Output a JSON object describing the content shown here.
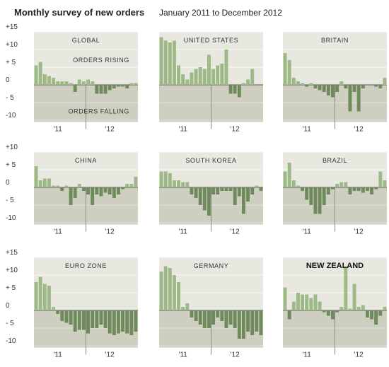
{
  "title": "Monthly survey of new orders",
  "subtitle": "January 2011 to December 2012",
  "chart_data": [
    {
      "type": "bar",
      "title": "GLOBAL",
      "annotations": [
        "ORDERS RISING",
        "ORDERS FALLING"
      ],
      "categories": [
        null,
        null,
        null,
        null,
        null,
        "'11",
        null,
        null,
        null,
        null,
        null,
        null,
        null,
        null,
        null,
        null,
        null,
        "'12",
        null,
        null,
        null,
        null,
        null,
        null
      ],
      "values": [
        5.5,
        6.5,
        3,
        2.5,
        2,
        1,
        1,
        1,
        0.5,
        -2,
        1.5,
        1,
        1.5,
        1,
        -2.5,
        -2.5,
        -2.5,
        -1.5,
        -1,
        -0.5,
        -0.5,
        -1,
        0.5,
        0.5
      ],
      "color": "#9cb987",
      "negative_color": "#6f8a5c",
      "ylim": [
        -10.5,
        15
      ],
      "yticks": [
        {
          "value": 15,
          "label": "+15"
        },
        {
          "value": 10,
          "label": "+10"
        },
        {
          "value": 5,
          "label": "+ 5"
        },
        0,
        {
          "value": -5,
          "label": "- 5"
        },
        -10
      ]
    },
    {
      "type": "bar",
      "title": "UNITED STATES",
      "categories": [
        null,
        null,
        null,
        null,
        null,
        "'11",
        null,
        null,
        null,
        null,
        null,
        null,
        null,
        null,
        null,
        null,
        null,
        "'12",
        null,
        null,
        null,
        null,
        null,
        null
      ],
      "values": [
        13.5,
        12.5,
        12,
        12.5,
        5.5,
        3,
        1.5,
        3.5,
        4.5,
        5,
        4.5,
        8.5,
        4.5,
        5.5,
        6,
        10,
        -2.5,
        -2.5,
        -3.5,
        0.5,
        1.5,
        4.5,
        0,
        0
      ],
      "color": "#9cb987",
      "negative_color": "#6f8a5c",
      "ylim": [
        -10.5,
        15
      ]
    },
    {
      "type": "bar",
      "title": "BRITAIN",
      "categories": [
        null,
        null,
        null,
        null,
        null,
        "'11",
        null,
        null,
        null,
        null,
        null,
        null,
        null,
        null,
        null,
        null,
        null,
        "'12",
        null,
        null,
        null,
        null,
        null,
        null
      ],
      "values": [
        9,
        7,
        2,
        1,
        0.5,
        -0.5,
        0.5,
        -1,
        -1.5,
        -2,
        -3,
        -3.5,
        -2,
        1,
        -1,
        -7.5,
        -2,
        -7.5,
        -1,
        0,
        0,
        -0.5,
        -1,
        2
      ],
      "color": "#9cb987",
      "negative_color": "#6f8a5c",
      "ylim": [
        -10.5,
        15
      ]
    },
    {
      "type": "bar",
      "title": "CHINA",
      "categories": [
        null,
        null,
        null,
        null,
        null,
        "'11",
        null,
        null,
        null,
        null,
        null,
        null,
        null,
        null,
        null,
        null,
        null,
        "'12",
        null,
        null,
        null,
        null,
        null,
        null
      ],
      "values": [
        6,
        2,
        2.5,
        2.5,
        0.5,
        0.5,
        -1,
        0.5,
        -5,
        -3,
        1,
        -1,
        -2,
        -5,
        -2,
        -2.5,
        -1.5,
        -2,
        -3,
        -2,
        -0.5,
        1,
        1,
        3
      ],
      "color": "#9cb987",
      "negative_color": "#6f8a5c",
      "ylim": [
        -10.5,
        10
      ],
      "yticks": [
        {
          "value": 10,
          "label": "+10"
        },
        {
          "value": 5,
          "label": "+ 5"
        },
        0,
        {
          "value": -5,
          "label": "- 5"
        },
        -10
      ]
    },
    {
      "type": "bar",
      "title": "SOUTH KOREA",
      "categories": [
        null,
        null,
        null,
        null,
        null,
        "'11",
        null,
        null,
        null,
        null,
        null,
        null,
        null,
        null,
        null,
        null,
        null,
        "'12",
        null,
        null,
        null,
        null,
        null,
        null
      ],
      "values": [
        4.5,
        4.5,
        4,
        2,
        2,
        1.5,
        1.5,
        -2,
        -3,
        -5,
        -6.5,
        -8,
        -2,
        -2,
        -1,
        -1,
        -1,
        -5,
        -2.5,
        -7.5,
        -4,
        -2,
        0.5,
        -1
      ],
      "color": "#9cb987",
      "negative_color": "#6f8a5c",
      "ylim": [
        -10.5,
        10
      ]
    },
    {
      "type": "bar",
      "title": "BRAZIL",
      "categories": [
        null,
        null,
        null,
        null,
        null,
        "'11",
        null,
        null,
        null,
        null,
        null,
        null,
        null,
        null,
        null,
        null,
        null,
        "'12",
        null,
        null,
        null,
        null,
        null,
        null
      ],
      "values": [
        4.5,
        7,
        2,
        0.5,
        -1,
        -3.5,
        -5,
        -7.5,
        -7.5,
        -5,
        -2,
        -0.5,
        1,
        1.5,
        1.5,
        -2,
        -1,
        -1,
        -1.5,
        -1,
        -2,
        -0.5,
        4.5,
        2
      ],
      "color": "#9cb987",
      "negative_color": "#6f8a5c",
      "ylim": [
        -10.5,
        10
      ]
    },
    {
      "type": "bar",
      "title": "EURO ZONE",
      "categories": [
        null,
        null,
        null,
        null,
        null,
        "'11",
        null,
        null,
        null,
        null,
        null,
        null,
        null,
        null,
        null,
        null,
        null,
        "'12",
        null,
        null,
        null,
        null,
        null,
        null
      ],
      "values": [
        8,
        9.5,
        7.5,
        7,
        1,
        -1,
        -3,
        -3.5,
        -4,
        -6,
        -5.5,
        -5.5,
        -6.5,
        -5,
        -5,
        -4,
        -5,
        -6.5,
        -7,
        -6.5,
        -6,
        -6.5,
        -7,
        -6
      ],
      "color": "#9cb987",
      "negative_color": "#6f8a5c",
      "ylim": [
        -10.5,
        15
      ],
      "yticks": [
        {
          "value": 15,
          "label": "+15"
        },
        {
          "value": 10,
          "label": "+10"
        },
        {
          "value": 5,
          "label": "+ 5"
        },
        0,
        {
          "value": -5,
          "label": "- 5"
        },
        -10
      ]
    },
    {
      "type": "bar",
      "title": "GERMANY",
      "categories": [
        null,
        null,
        null,
        null,
        null,
        "'11",
        null,
        null,
        null,
        null,
        null,
        null,
        null,
        null,
        null,
        null,
        null,
        "'12",
        null,
        null,
        null,
        null,
        null,
        null
      ],
      "values": [
        11,
        12.5,
        12,
        10,
        8,
        1,
        2,
        -2,
        -3,
        -4,
        -5,
        -5,
        -4,
        -2,
        -3,
        -5,
        -4,
        -5,
        -8,
        -8,
        -6,
        -7,
        -6,
        -7
      ],
      "color": "#9cb987",
      "negative_color": "#6f8a5c",
      "ylim": [
        -10.5,
        15
      ]
    },
    {
      "type": "bar",
      "title": "NEW ZEALAND",
      "highlight": true,
      "categories": [
        null,
        null,
        null,
        null,
        null,
        "'11",
        null,
        null,
        null,
        null,
        null,
        null,
        null,
        null,
        null,
        null,
        null,
        "'12",
        null,
        null,
        null,
        null,
        null,
        null
      ],
      "values": [
        6.5,
        -2.5,
        2.5,
        5,
        4.5,
        4.5,
        3.5,
        4.5,
        2.5,
        -0.5,
        -1.5,
        -2.5,
        -0.5,
        1,
        12.5,
        0.5,
        7.5,
        1,
        1.5,
        -2,
        -2.5,
        -4,
        -1.5,
        1
      ],
      "color": "#9cb987",
      "negative_color": "#6f8a5c",
      "ylim": [
        -10.5,
        15
      ]
    }
  ]
}
